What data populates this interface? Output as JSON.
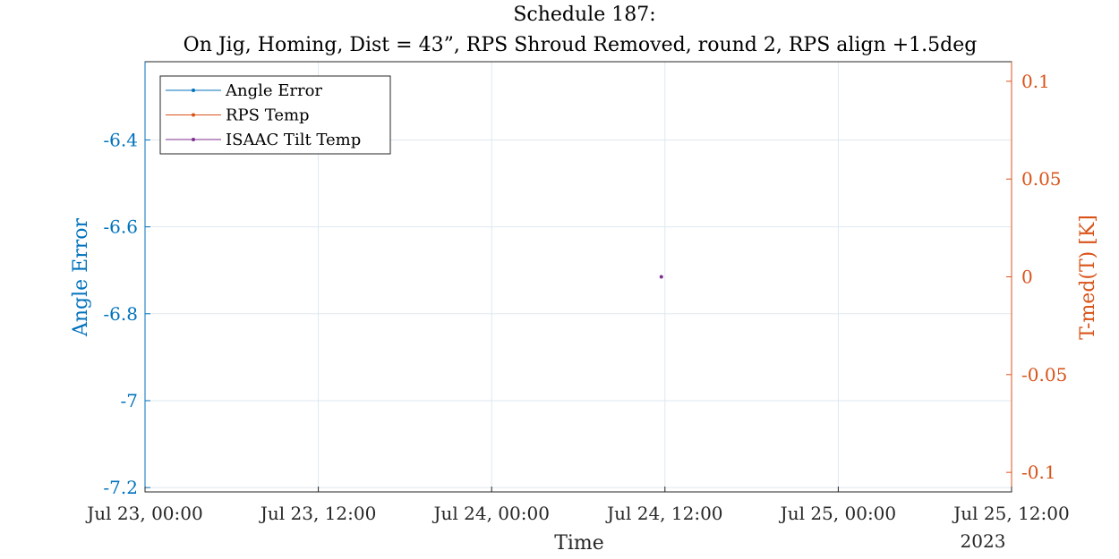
{
  "chart_data": {
    "type": "line",
    "title": "Schedule 187:",
    "subtitle": "On Jig, Homing, Dist = 43”, RPS Shroud Removed, round 2, RPS align +1.5deg",
    "xlabel": "Time",
    "x_year_label": "2023",
    "ylabel_left": "Angle Error",
    "ylabel_right": "T-med(T) [K]",
    "x_range": [
      "2023-07-23T00:00",
      "2023-07-25T12:00"
    ],
    "x_ticks": [
      "Jul 23, 00:00",
      "Jul 23, 12:00",
      "Jul 24, 00:00",
      "Jul 24, 12:00",
      "Jul 25, 00:00",
      "Jul 25, 12:00"
    ],
    "x_tick_times": [
      "2023-07-23T00:00",
      "2023-07-23T12:00",
      "2023-07-24T00:00",
      "2023-07-24T12:00",
      "2023-07-25T00:00",
      "2023-07-25T12:00"
    ],
    "ylim_left": [
      -7.21,
      -6.22
    ],
    "yticks_left": [
      "-6.4",
      "-6.6",
      "-6.8",
      "-7",
      "-7.2"
    ],
    "ytick_values_left": [
      -6.4,
      -6.6,
      -6.8,
      -7.0,
      -7.2
    ],
    "ylim_right": [
      -0.11,
      0.11
    ],
    "yticks_right": [
      "0.1",
      "0.05",
      "0",
      "-0.05",
      "-0.1"
    ],
    "ytick_values_right": [
      0.1,
      0.05,
      0,
      -0.05,
      -0.1
    ],
    "grid": true,
    "legend_position": "top-left",
    "series": [
      {
        "name": "Angle Error",
        "axis": "left",
        "color": "#0072BD",
        "points": []
      },
      {
        "name": "RPS Temp",
        "axis": "right",
        "color": "#D95319",
        "points": []
      },
      {
        "name": "ISAAC Tilt Temp",
        "axis": "right",
        "color": "#7E2F8E",
        "points": [
          {
            "x": "2023-07-24T11:45",
            "y": 0
          }
        ]
      }
    ],
    "colors": {
      "left_axis": "#0072BD",
      "right_axis": "#D95319",
      "grid": "#dfe8f0",
      "axis": "#262626"
    }
  }
}
